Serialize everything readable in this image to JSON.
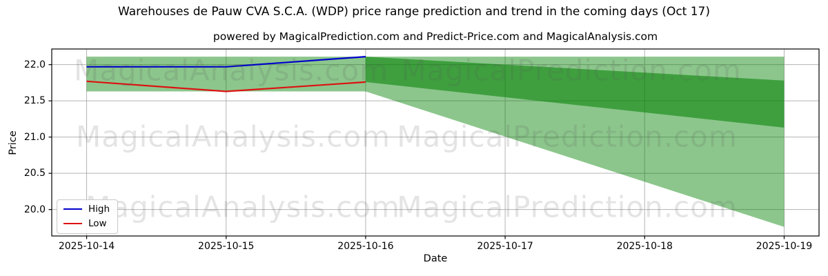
{
  "title": "Warehouses de Pauw CVA S.C.A. (WDP) price range prediction and trend in the coming days (Oct 17)",
  "subtitle": "powered by MagicalPrediction.com and Predict-Price.com and MagicalAnalysis.com",
  "watermark": {
    "left": "MagicalAnalysis.com",
    "right": "MagicalPrediction.com"
  },
  "legend": {
    "items": [
      {
        "label": "High",
        "color": "#0000cc"
      },
      {
        "label": "Low",
        "color": "#dd1111"
      }
    ]
  },
  "colors": {
    "high_line": "#0000cc",
    "low_line": "#dd1111",
    "band_light": "rgba(0,128,0,0.45)",
    "band_dark": "rgba(0,128,0,0.55)",
    "gridline": "#b3b3b3",
    "axis_border": "#000000"
  },
  "chart_data": {
    "type": "line",
    "title": "Warehouses de Pauw CVA S.C.A. (WDP) price range prediction and trend in the coming days (Oct 17)",
    "subtitle": "powered by MagicalPrediction.com and Predict-Price.com and MagicalAnalysis.com",
    "xlabel": "Date",
    "ylabel": "Price",
    "grid": true,
    "legend_position": "lower left",
    "x_tick_labels": [
      "2025-10-14",
      "2025-10-15",
      "2025-10-16",
      "2025-10-17",
      "2025-10-18",
      "2025-10-19"
    ],
    "x_tick_days": [
      14,
      15,
      16,
      17,
      18,
      19
    ],
    "y_tick_labels": [
      "20.0",
      "20.5",
      "21.0",
      "21.5",
      "22.0"
    ],
    "y_tick_values": [
      20.0,
      20.5,
      21.0,
      21.5,
      22.0
    ],
    "xlim": [
      13.75,
      19.25
    ],
    "ylim": [
      19.635,
      22.216
    ],
    "series": [
      {
        "name": "High",
        "color": "#0000cc",
        "x": [
          14,
          15,
          16
        ],
        "y": [
          21.97,
          21.97,
          22.11
        ]
      },
      {
        "name": "Low",
        "color": "#dd1111",
        "x": [
          14,
          15,
          16
        ],
        "y": [
          21.77,
          21.63,
          21.76
        ]
      }
    ],
    "bands": [
      {
        "name": "historical-range",
        "x": [
          14,
          16
        ],
        "top": [
          22.11,
          22.11
        ],
        "bottom": [
          21.63,
          21.63
        ],
        "fill": "rgba(0,128,0,0.45)"
      },
      {
        "name": "forecast-outer",
        "x": [
          16,
          19
        ],
        "top": [
          22.11,
          22.11
        ],
        "bottom": [
          21.63,
          19.76
        ],
        "fill": "rgba(0,128,0,0.45)"
      },
      {
        "name": "forecast-inner",
        "x": [
          16,
          19
        ],
        "top": [
          22.11,
          21.78
        ],
        "bottom": [
          21.76,
          21.13
        ],
        "fill": "rgba(0,128,0,0.55)"
      }
    ]
  }
}
